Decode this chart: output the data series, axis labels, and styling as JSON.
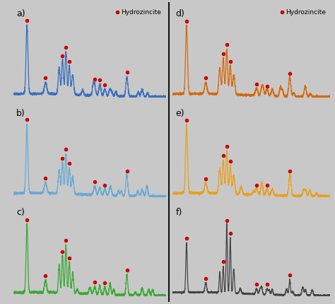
{
  "panels": [
    "a",
    "b",
    "c",
    "d",
    "e",
    "f"
  ],
  "colors": [
    "#3a6fbd",
    "#6aaad4",
    "#3aaa35",
    "#d4690a",
    "#e8a020",
    "#444444"
  ],
  "legend_label": "Hydrozincite",
  "legend_color": "#cc0000",
  "fig_bg": "#c8c8c8",
  "panel_bg": "#ffffff",
  "border_color": "#111111",
  "divider_color": "#111111"
}
